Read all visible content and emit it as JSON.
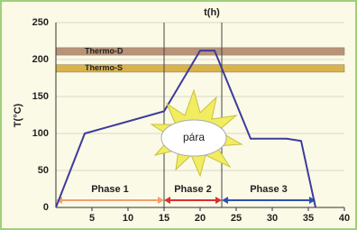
{
  "chart_data": {
    "type": "line",
    "title": "t(h)",
    "y_label": "T(°C)",
    "x": [
      0,
      4,
      15,
      20,
      22,
      27,
      32,
      34,
      36
    ],
    "series": [
      {
        "color": "#3c3c9c",
        "values": [
          0,
          100,
          130,
          212,
          212,
          93,
          93,
          90,
          0
        ]
      }
    ],
    "xlim": [
      0,
      40
    ],
    "ylim": [
      0,
      250
    ],
    "xticks": [
      5,
      10,
      15,
      20,
      25,
      30,
      35,
      40
    ],
    "yticks": [
      0,
      50,
      100,
      150,
      200,
      250
    ],
    "grid": true,
    "bands": [
      {
        "label": "Thermo-D",
        "range": [
          206,
          216
        ],
        "color": "#b8937a"
      },
      {
        "label": "Thermo-S",
        "range": [
          183,
          193
        ],
        "color": "#d9b24a"
      }
    ],
    "dividers": [
      15,
      23
    ],
    "phases": [
      {
        "label": "Phase 1",
        "range": [
          0,
          15
        ],
        "color": "#f0a070"
      },
      {
        "label": "Phase 2",
        "range": [
          15,
          23
        ],
        "color": "#d83030"
      },
      {
        "label": "Phase 3",
        "range": [
          23,
          36
        ],
        "color": "#3050b0"
      }
    ],
    "annotation": "pára"
  }
}
